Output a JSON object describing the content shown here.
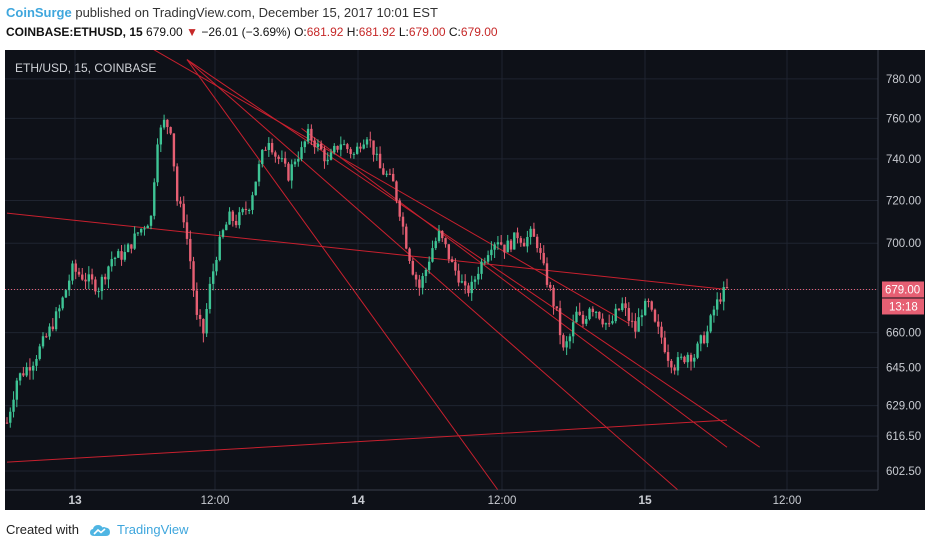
{
  "header": {
    "author": "CoinSurge",
    "published": " published on TradingView.com, December 15, 2017 10:01 EST",
    "symbol": "COINBASE:ETHUSD, 15",
    "last": "679.00",
    "arrow": "▼",
    "change": "−26.01 (−3.69%)",
    "o_label": "O:",
    "o_value": "681.92",
    "h_label": "H:",
    "h_value": "681.92",
    "l_label": "L:",
    "l_value": "679.00",
    "c_label": "C:",
    "c_value": "679.00"
  },
  "chart_title": "ETH/USD, 15, COINBASE",
  "price_badge": "679.00",
  "timer_badge": "13:18",
  "footer": {
    "created": "Created with",
    "brand": "TradingView"
  },
  "colors": {
    "up": "#3ec495",
    "down": "#e65f73",
    "trend": "#c8202e",
    "bg": "#0e1118",
    "axis": "#c9ccd2"
  },
  "chart_data": {
    "type": "candlestick",
    "y_scale": "log",
    "ylim": [
      595,
      795
    ],
    "y_ticks": [
      "780.00",
      "760.00",
      "740.00",
      "720.00",
      "700.00",
      "679.00",
      "660.00",
      "645.00",
      "629.00",
      "616.50",
      "602.50"
    ],
    "x_ticks": [
      "13",
      "12:00",
      "14",
      "12:00",
      "15",
      "12:00"
    ],
    "bold_x_ticks": [
      "13",
      "14",
      "15"
    ],
    "price_path": [
      [
        0,
        622
      ],
      [
        3,
        640
      ],
      [
        8,
        648
      ],
      [
        12,
        658
      ],
      [
        16,
        670
      ],
      [
        20,
        688
      ],
      [
        24,
        684
      ],
      [
        28,
        680
      ],
      [
        32,
        693
      ],
      [
        36,
        695
      ],
      [
        40,
        705
      ],
      [
        44,
        712
      ],
      [
        46,
        750
      ],
      [
        48,
        758
      ],
      [
        50,
        755
      ],
      [
        52,
        720
      ],
      [
        54,
        712
      ],
      [
        56,
        692
      ],
      [
        58,
        666
      ],
      [
        60,
        660
      ],
      [
        62,
        680
      ],
      [
        64,
        695
      ],
      [
        66,
        705
      ],
      [
        68,
        712
      ],
      [
        70,
        710
      ],
      [
        72,
        714
      ],
      [
        74,
        718
      ],
      [
        76,
        730
      ],
      [
        78,
        742
      ],
      [
        80,
        750
      ],
      [
        82,
        742
      ],
      [
        84,
        738
      ],
      [
        86,
        732
      ],
      [
        88,
        740
      ],
      [
        90,
        744
      ],
      [
        92,
        752
      ],
      [
        94,
        748
      ],
      [
        96,
        744
      ],
      [
        98,
        738
      ],
      [
        100,
        744
      ],
      [
        102,
        748
      ],
      [
        104,
        745
      ],
      [
        106,
        742
      ],
      [
        108,
        748
      ],
      [
        110,
        752
      ],
      [
        112,
        744
      ],
      [
        114,
        735
      ],
      [
        116,
        732
      ],
      [
        118,
        728
      ],
      [
        120,
        715
      ],
      [
        122,
        700
      ],
      [
        124,
        688
      ],
      [
        126,
        680
      ],
      [
        128,
        688
      ],
      [
        130,
        698
      ],
      [
        132,
        704
      ],
      [
        134,
        698
      ],
      [
        136,
        690
      ],
      [
        138,
        685
      ],
      [
        140,
        678
      ],
      [
        142,
        680
      ],
      [
        144,
        688
      ],
      [
        146,
        694
      ],
      [
        148,
        700
      ],
      [
        150,
        702
      ],
      [
        152,
        698
      ],
      [
        154,
        700
      ],
      [
        156,
        704
      ],
      [
        158,
        701
      ],
      [
        160,
        704
      ],
      [
        162,
        700
      ],
      [
        164,
        688
      ],
      [
        166,
        678
      ],
      [
        168,
        668
      ],
      [
        170,
        652
      ],
      [
        172,
        658
      ],
      [
        174,
        668
      ],
      [
        176,
        664
      ],
      [
        178,
        672
      ],
      [
        180,
        670
      ],
      [
        182,
        666
      ],
      [
        184,
        662
      ],
      [
        186,
        668
      ],
      [
        188,
        672
      ],
      [
        190,
        666
      ],
      [
        192,
        661
      ],
      [
        194,
        670
      ],
      [
        196,
        672
      ],
      [
        198,
        663
      ],
      [
        200,
        658
      ],
      [
        202,
        650
      ],
      [
        204,
        646
      ],
      [
        206,
        648
      ],
      [
        208,
        651
      ],
      [
        210,
        650
      ],
      [
        212,
        656
      ],
      [
        214,
        660
      ],
      [
        216,
        670
      ],
      [
        218,
        676
      ],
      [
        220,
        679
      ]
    ],
    "price_path_note_x_range": [
      0,
      220
    ],
    "trendlines": [
      {
        "from": [
          0,
          714
        ],
        "to": [
          220,
          679
        ]
      },
      {
        "from": [
          0,
          606
        ],
        "to": [
          220,
          623
        ]
      },
      {
        "from": [
          55,
          790
        ],
        "to": [
          230,
          612
        ]
      },
      {
        "from": [
          55,
          790
        ],
        "to": [
          205,
          595
        ]
      },
      {
        "from": [
          55,
          790
        ],
        "to": [
          150,
          595
        ]
      },
      {
        "from": [
          90,
          755
        ],
        "to": [
          220,
          612
        ]
      },
      {
        "from": [
          40,
          800
        ],
        "to": [
          190,
          664
        ]
      }
    ]
  }
}
